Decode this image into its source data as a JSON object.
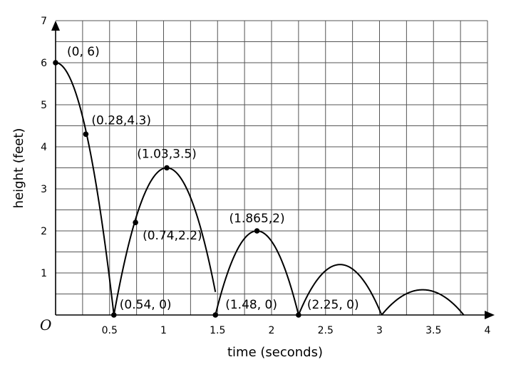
{
  "chart_data": {
    "type": "line",
    "xlabel": "time (seconds)",
    "ylabel": "height (feet)",
    "xlim": [
      0,
      4
    ],
    "ylim": [
      0,
      7
    ],
    "grid": true,
    "origin_label": "O",
    "x_ticks": [
      0.5,
      1,
      1.5,
      2,
      2.5,
      3,
      3.5,
      4
    ],
    "x_tick_labels": [
      "0.5",
      "1",
      "1.5",
      "2",
      "2.5",
      "3",
      "3.5",
      "4"
    ],
    "y_ticks": [
      1,
      2,
      3,
      4,
      5,
      6,
      7
    ],
    "y_tick_labels": [
      "1",
      "2",
      "3",
      "4",
      "5",
      "6",
      "7"
    ],
    "series": [
      {
        "arcs": [
          {
            "start": 0,
            "end": 0.54,
            "vertex_x": 0,
            "vertex_y": 6
          },
          {
            "start": 0.54,
            "end": 1.48,
            "vertex_x": 1.03,
            "vertex_y": 3.5
          },
          {
            "start": 1.48,
            "end": 2.25,
            "vertex_x": 1.865,
            "vertex_y": 2
          },
          {
            "start": 2.25,
            "end": 3.02,
            "vertex_x": 2.635,
            "vertex_y": 1.2
          },
          {
            "start": 3.02,
            "end": 3.78,
            "vertex_x": 3.4,
            "vertex_y": 0.6
          }
        ]
      }
    ],
    "points": [
      {
        "x": 0,
        "y": 6,
        "label": "(0, 6)"
      },
      {
        "x": 0.28,
        "y": 4.3,
        "label": "(0.28,4.3)"
      },
      {
        "x": 0.54,
        "y": 0,
        "label": "(0.54, 0)"
      },
      {
        "x": 0.74,
        "y": 2.2,
        "label": "(0.74,2.2)"
      },
      {
        "x": 1.03,
        "y": 3.5,
        "label": "(1.03,3.5)"
      },
      {
        "x": 1.48,
        "y": 0,
        "label": "(1.48, 0)"
      },
      {
        "x": 1.865,
        "y": 2,
        "label": "(1.865,2)"
      },
      {
        "x": 2.25,
        "y": 0,
        "label": "(2.25, 0)"
      }
    ]
  }
}
